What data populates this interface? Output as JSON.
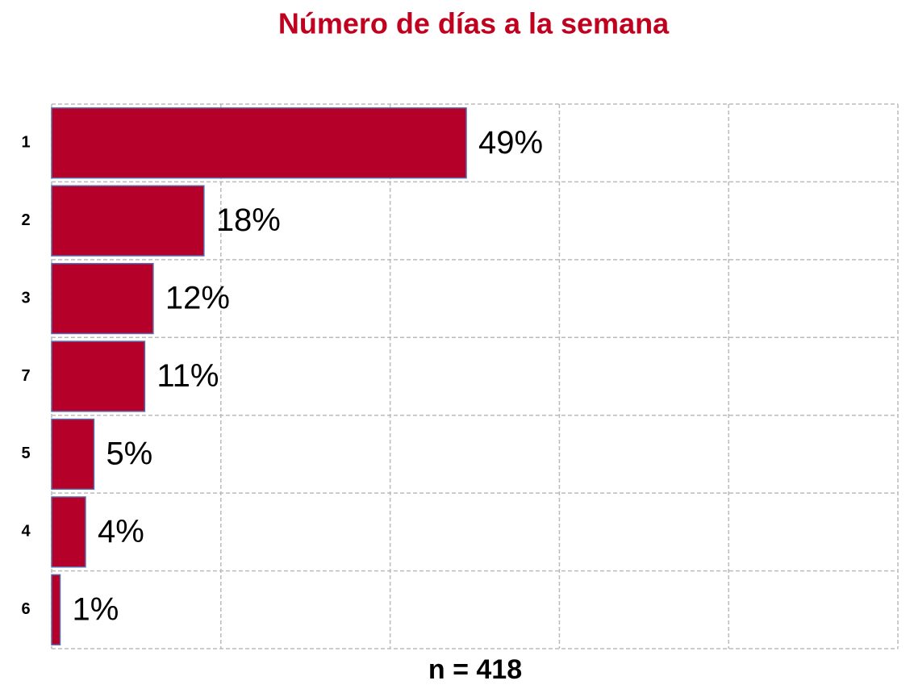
{
  "chart_data": {
    "type": "hbar",
    "title": "Número de días a la semana",
    "note": "n = 418",
    "categories": [
      "1",
      "2",
      "3",
      "7",
      "5",
      "4",
      "6"
    ],
    "values": [
      49,
      18,
      12,
      11,
      5,
      4,
      1
    ],
    "value_labels": [
      "49%",
      "18%",
      "12%",
      "11%",
      "5%",
      "4%",
      "1%"
    ],
    "color": "#b5002a",
    "xlim": [
      0,
      100
    ],
    "xticks": [
      0,
      20,
      40,
      60,
      80,
      100
    ],
    "grid": true
  }
}
